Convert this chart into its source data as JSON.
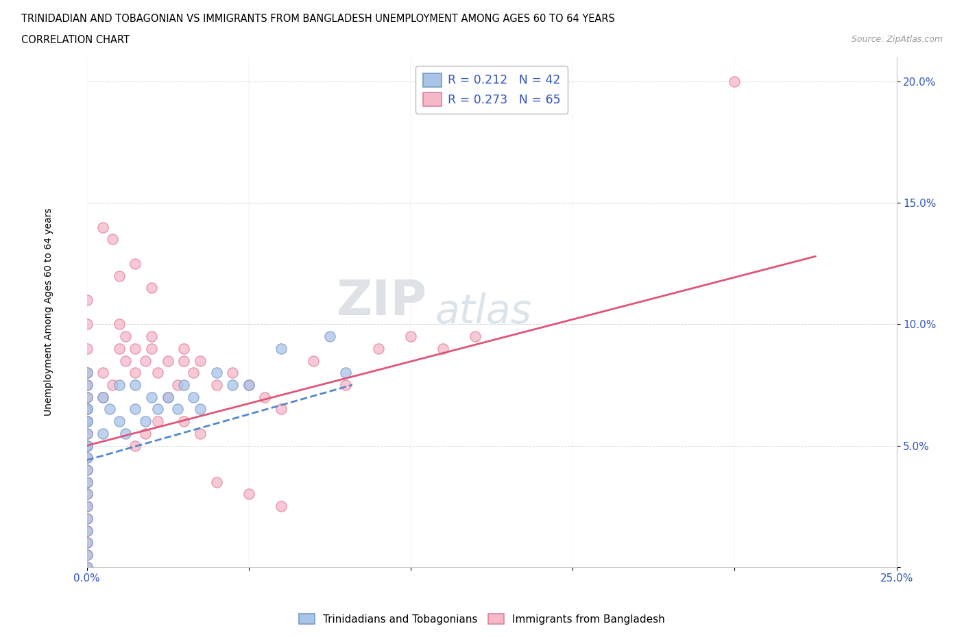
{
  "title_line1": "TRINIDADIAN AND TOBAGONIAN VS IMMIGRANTS FROM BANGLADESH UNEMPLOYMENT AMONG AGES 60 TO 64 YEARS",
  "title_line2": "CORRELATION CHART",
  "source_text": "Source: ZipAtlas.com",
  "ylabel": "Unemployment Among Ages 60 to 64 years",
  "xlim": [
    0.0,
    0.25
  ],
  "ylim": [
    0.0,
    0.21
  ],
  "xtick_positions": [
    0.0,
    0.05,
    0.1,
    0.15,
    0.2,
    0.25
  ],
  "xticklabels": [
    "0.0%",
    "",
    "",
    "",
    "",
    "25.0%"
  ],
  "ytick_positions": [
    0.0,
    0.05,
    0.1,
    0.15,
    0.2
  ],
  "yticklabels": [
    "",
    "5.0%",
    "10.0%",
    "15.0%",
    "20.0%"
  ],
  "legend_blue_label": "R = 0.212   N = 42",
  "legend_pink_label": "R = 0.273   N = 65",
  "legend_bottom_blue": "Trinidadians and Tobagonians",
  "legend_bottom_pink": "Immigrants from Bangladesh",
  "blue_fill_color": "#aac4e8",
  "pink_fill_color": "#f5b8c8",
  "blue_edge_color": "#7799cc",
  "pink_edge_color": "#e080a0",
  "blue_line_color": "#5588cc",
  "pink_line_color": "#dd5577",
  "watermark_zip": "ZIP",
  "watermark_atlas": "atlas",
  "blue_x": [
    0.0,
    0.0,
    0.0,
    0.0,
    0.0,
    0.0,
    0.0,
    0.0,
    0.0,
    0.0,
    0.0,
    0.0,
    0.0,
    0.0,
    0.0,
    0.0,
    0.0,
    0.0,
    0.0,
    0.0,
    0.005,
    0.005,
    0.007,
    0.01,
    0.01,
    0.012,
    0.015,
    0.015,
    0.018,
    0.02,
    0.022,
    0.025,
    0.028,
    0.03,
    0.033,
    0.035,
    0.04,
    0.045,
    0.05,
    0.06,
    0.075,
    0.08
  ],
  "blue_y": [
    0.0,
    0.005,
    0.01,
    0.015,
    0.02,
    0.025,
    0.03,
    0.035,
    0.04,
    0.045,
    0.05,
    0.055,
    0.06,
    0.065,
    0.07,
    0.075,
    0.08,
    0.05,
    0.06,
    0.065,
    0.055,
    0.07,
    0.065,
    0.06,
    0.075,
    0.055,
    0.065,
    0.075,
    0.06,
    0.07,
    0.065,
    0.07,
    0.065,
    0.075,
    0.07,
    0.065,
    0.08,
    0.075,
    0.075,
    0.09,
    0.095,
    0.08
  ],
  "pink_x": [
    0.0,
    0.0,
    0.0,
    0.0,
    0.0,
    0.0,
    0.0,
    0.0,
    0.0,
    0.0,
    0.0,
    0.0,
    0.0,
    0.0,
    0.0,
    0.0,
    0.0,
    0.0,
    0.0,
    0.0,
    0.005,
    0.005,
    0.008,
    0.01,
    0.01,
    0.012,
    0.012,
    0.015,
    0.015,
    0.018,
    0.02,
    0.02,
    0.022,
    0.025,
    0.028,
    0.03,
    0.03,
    0.033,
    0.035,
    0.04,
    0.045,
    0.05,
    0.055,
    0.06,
    0.07,
    0.08,
    0.09,
    0.1,
    0.11,
    0.12,
    0.03,
    0.035,
    0.04,
    0.05,
    0.06,
    0.005,
    0.008,
    0.01,
    0.015,
    0.02,
    0.025,
    0.022,
    0.018,
    0.015,
    0.2
  ],
  "pink_y": [
    0.0,
    0.005,
    0.01,
    0.015,
    0.02,
    0.025,
    0.03,
    0.035,
    0.04,
    0.045,
    0.05,
    0.055,
    0.06,
    0.065,
    0.07,
    0.075,
    0.08,
    0.09,
    0.1,
    0.11,
    0.07,
    0.08,
    0.075,
    0.09,
    0.1,
    0.085,
    0.095,
    0.08,
    0.09,
    0.085,
    0.09,
    0.095,
    0.08,
    0.085,
    0.075,
    0.085,
    0.09,
    0.08,
    0.085,
    0.075,
    0.08,
    0.075,
    0.07,
    0.065,
    0.085,
    0.075,
    0.09,
    0.095,
    0.09,
    0.095,
    0.06,
    0.055,
    0.035,
    0.03,
    0.025,
    0.14,
    0.135,
    0.12,
    0.125,
    0.115,
    0.07,
    0.06,
    0.055,
    0.05,
    0.2
  ],
  "blue_trend_x0": 0.0,
  "blue_trend_x1": 0.082,
  "blue_trend_y0": 0.044,
  "blue_trend_y1": 0.075,
  "pink_trend_x0": 0.0,
  "pink_trend_x1": 0.225,
  "pink_trend_y0": 0.05,
  "pink_trend_y1": 0.128
}
